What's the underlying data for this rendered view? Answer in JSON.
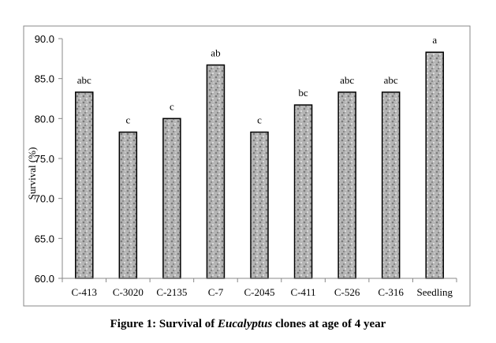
{
  "chart_data": {
    "type": "bar",
    "categories": [
      "C-413",
      "C-3020",
      "C-2135",
      "C-7",
      "C-2045",
      "C-411",
      "C-526",
      "C-316",
      "Seedling"
    ],
    "values": [
      83.3,
      78.3,
      80.0,
      86.7,
      78.3,
      81.7,
      83.3,
      83.3,
      88.3
    ],
    "labels": [
      "abc",
      "c",
      "c",
      "ab",
      "c",
      "bc",
      "abc",
      "abc",
      "a"
    ],
    "ylabel": "Survival  (%)",
    "xlabel": "",
    "ylim": [
      60,
      90
    ],
    "yticks": [
      "60.0",
      "65.0",
      "70.0",
      "75.0",
      "80.0",
      "85.0",
      "90.0"
    ],
    "grid": false,
    "bar_color": "#a8a8a8"
  },
  "caption": {
    "prefix": "Figure 1: Survival of ",
    "italic": "Eucalyptus",
    "suffix": " clones at age of 4 year"
  }
}
